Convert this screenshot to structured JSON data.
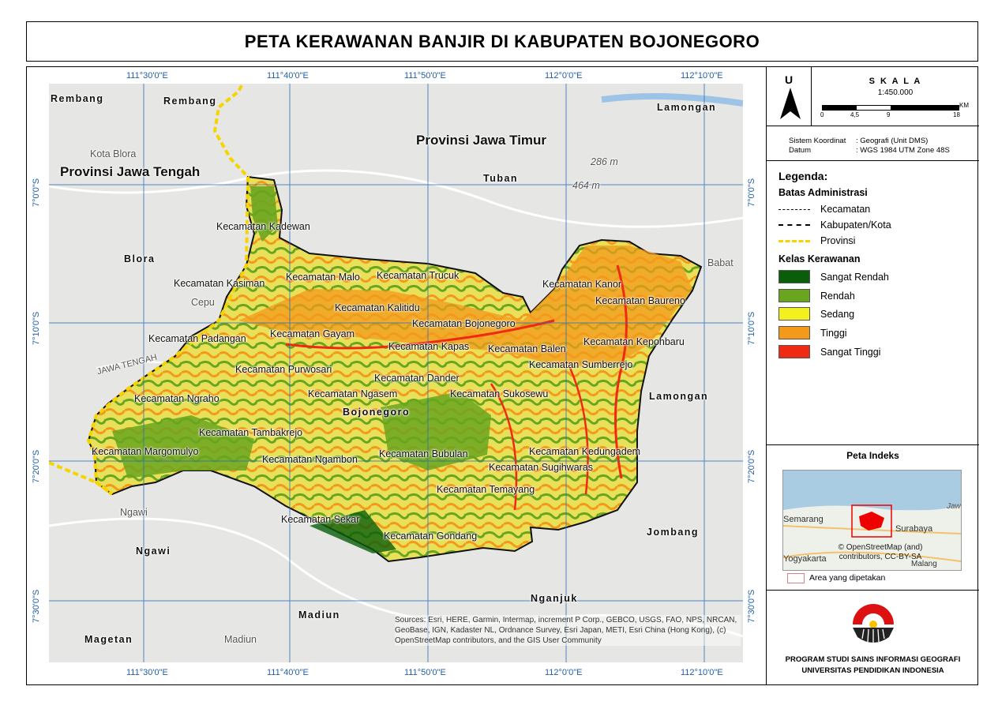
{
  "title": "PETA KERAWANAN BANJIR DI KABUPATEN BOJONEGORO",
  "colors": {
    "sangat_rendah": "#0a5e0a",
    "rendah": "#6aa51f",
    "sedang": "#f2f01e",
    "tinggi": "#f39a1b",
    "sangat_tinggi": "#ee2a12",
    "graticule": "#2f6fb8",
    "province_border": "#f5d400"
  },
  "coords": {
    "top": [
      "111°30'0\"E",
      "111°40'0\"E",
      "111°50'0\"E",
      "112°0'0\"E",
      "112°10'0\"E"
    ],
    "bottom": [
      "111°30'0\"E",
      "111°40'0\"E",
      "111°50'0\"E",
      "112°0'0\"E",
      "112°10'0\"E"
    ],
    "left": [
      "7°0'0\"S",
      "7°10'0\"S",
      "7°20'0\"S",
      "7°30'0\"S"
    ],
    "right": [
      "7°0'0\"S",
      "7°10'0\"S",
      "7°20'0\"S",
      "7°30'0\"S"
    ]
  },
  "north": {
    "letter": "U"
  },
  "scale": {
    "title": "S K A L A",
    "ratio": "1:450.000",
    "ticks": [
      "0",
      "4,5",
      "9",
      "18"
    ],
    "unit": "KM"
  },
  "crs": {
    "label1": "Sistem Koordinat",
    "value1": ": Geografi (Unit DMS)",
    "label2": "Datum",
    "value2": ": WGS 1984 UTM Zone 48S"
  },
  "legend": {
    "title": "Legenda:",
    "admin_title": "Batas Administrasi",
    "admin_items": [
      "Kecamatan",
      "Kabupaten/Kota",
      "Provinsi"
    ],
    "class_title": "Kelas Kerawanan",
    "class_items": [
      "Sangat Rendah",
      "Rendah",
      "Sedang",
      "Tinggi",
      "Sangat Tinggi"
    ]
  },
  "index_map": {
    "title": "Peta Indeks",
    "labels": [
      "Semarang",
      "Surabaya",
      "Yogyakarta",
      "Malang",
      "Jaw"
    ],
    "credit": "© OpenStreetMap (and) contributors, CC-BY-SA",
    "area_label": "Area yang dipetakan"
  },
  "institution": {
    "line1": "PROGRAM STUDI SAINS INFORMASI GEOGRAFI",
    "line2": "UNIVERSITAS PENDIDIKAN INDONESIA"
  },
  "map_labels": {
    "provinces": [
      "Provinsi Jawa Timur",
      "Provinsi Jawa Tengah"
    ],
    "regencies": [
      "Rembang",
      "Rembang",
      "Lamongan",
      "Tuban",
      "Blora",
      "Lamongan",
      "Jombang",
      "Ngawi",
      "Madiun",
      "Nganjuk",
      "Magetan",
      "Bojonegoro"
    ],
    "towns": [
      "Kota Blora",
      "Cepu",
      "Ngawi",
      "Madiun",
      "Babat",
      "Tuban",
      "JAWA TENGAH",
      "286 m",
      "464 m"
    ],
    "kecamatan": [
      "Kecamatan Kadewan",
      "Kecamatan Kasiman",
      "Kecamatan Malo",
      "Kecamatan Trucuk",
      "Kecamatan Kanor",
      "Kecamatan Baureno",
      "Kecamatan Kalitidu",
      "Kecamatan Bojonegoro",
      "Kecamatan Padangan",
      "Kecamatan Gayam",
      "Kecamatan Kapas",
      "Kecamatan Balen",
      "Kecamatan Kepohbaru",
      "Kecamatan Purwosari",
      "Kecamatan Sumberrejo",
      "Kecamatan Dander",
      "Kecamatan Ngraho",
      "Kecamatan Ngasem",
      "Kecamatan Sukosewu",
      "Kecamatan Tambakrejo",
      "Kecamatan Margomulyo",
      "Kecamatan Ngambon",
      "Kecamatan Bubulan",
      "Kecamatan Kedungadem",
      "Kecamatan Sugihwaras",
      "Kecamatan Temayang",
      "Kecamatan Sekar",
      "Kecamatan Gondang"
    ],
    "attribution": "Sources: Esri, HERE, Garmin, Intermap, increment P Corp., GEBCO, USGS, FAO, NPS, NRCAN, GeoBase, IGN, Kadaster NL, Ordnance Survey, Esri Japan, METI, Esri China (Hong Kong), (c) OpenStreetMap contributors, and the GIS User Community"
  }
}
